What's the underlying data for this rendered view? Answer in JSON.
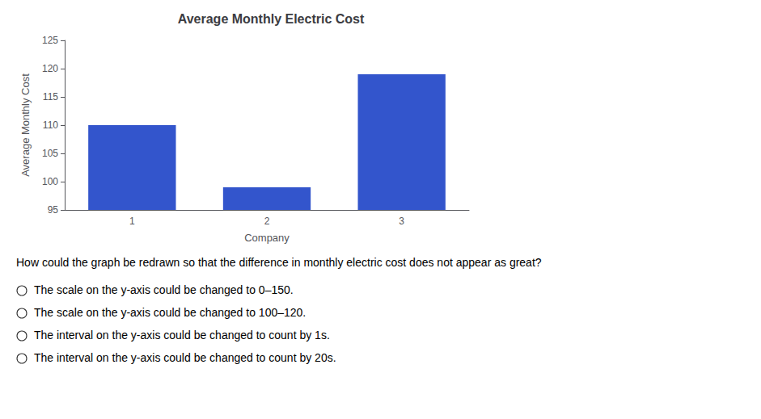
{
  "chart_data": {
    "type": "bar",
    "title": "Average Monthly Electric Cost",
    "xlabel": "Company",
    "ylabel": "Average Monthly Cost",
    "categories": [
      "1",
      "2",
      "3"
    ],
    "values": [
      110,
      99,
      119
    ],
    "color": "#3355cc",
    "ylim": [
      95,
      125
    ],
    "yticks": [
      95,
      100,
      105,
      110,
      115,
      120,
      125
    ],
    "grid": false,
    "annotations": [
      "How could the graph be redrawn so that the difference in monthly electric cost does not appear as great?",
      "The scale on the y-axis could be changed to 0–150.",
      "The scale on the y-axis could be changed to 100–120.",
      "The interval on the y-axis could be changed to count by 1s.",
      "The interval on the y-axis could be changed to count by 20s."
    ]
  }
}
